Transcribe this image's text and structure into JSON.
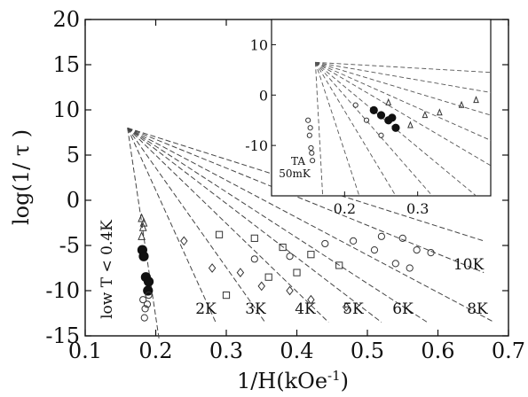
{
  "chart_data": {
    "type": "scatter",
    "xlabel": "1/H(kOe",
    "xlabel_sup": "-1",
    "xlabel_close": ")",
    "ylabel": "log(1/ τ )",
    "xlim": [
      0.1,
      0.7
    ],
    "ylim": [
      -15,
      20
    ],
    "x_ticks": [
      "0.1",
      "0.2",
      "0.3",
      "0.4",
      "0.5",
      "0.6",
      "0.7"
    ],
    "y_ticks": [
      "20",
      "15",
      "10",
      "5",
      "0",
      "-5",
      "-10",
      "-15"
    ],
    "focus_point": [
      0.16,
      8.0
    ],
    "fit_lines": [
      {
        "label": "low T < 0.4K",
        "end": [
          0.205,
          -15.5
        ]
      },
      {
        "label": "2K",
        "end": [
          0.285,
          -13.5
        ]
      },
      {
        "label": "3K",
        "end": [
          0.355,
          -13.5
        ]
      },
      {
        "label": "4K",
        "end": [
          0.445,
          -13.5
        ]
      },
      {
        "label": "5K",
        "end": [
          0.52,
          -13.5
        ]
      },
      {
        "label": "6K",
        "end": [
          0.585,
          -13.5
        ]
      },
      {
        "label": "8K",
        "end": [
          0.68,
          -13.5
        ]
      },
      {
        "label": "10K",
        "end": [
          0.665,
          -8.0
        ]
      },
      {
        "label": "",
        "end": [
          0.665,
          -4.5
        ]
      }
    ],
    "series": [
      {
        "marker": "filled-circle",
        "points": [
          [
            0.181,
            -5.5
          ],
          [
            0.186,
            -8.5
          ],
          [
            0.19,
            -9.0
          ],
          [
            0.189,
            -10.0
          ],
          [
            0.183,
            -6.2
          ]
        ]
      },
      {
        "marker": "open-triangle",
        "points": [
          [
            0.18,
            -2.0
          ],
          [
            0.182,
            -3.0
          ],
          [
            0.18,
            -4.0
          ],
          [
            0.183,
            -2.5
          ]
        ]
      },
      {
        "marker": "open-circle",
        "points": [
          [
            0.182,
            -11.0
          ],
          [
            0.185,
            -12.0
          ],
          [
            0.188,
            -11.5
          ],
          [
            0.184,
            -13.0
          ],
          [
            0.19,
            -10.5
          ]
        ]
      },
      {
        "marker": "open-diamond",
        "points": [
          [
            0.24,
            -4.5
          ],
          [
            0.28,
            -7.5
          ],
          [
            0.32,
            -8.0
          ],
          [
            0.35,
            -9.5
          ],
          [
            0.39,
            -10.0
          ],
          [
            0.42,
            -11.0
          ],
          [
            0.47,
            -11.8
          ]
        ]
      },
      {
        "marker": "open-square",
        "points": [
          [
            0.29,
            -3.8
          ],
          [
            0.34,
            -4.2
          ],
          [
            0.38,
            -5.2
          ],
          [
            0.42,
            -6.0
          ],
          [
            0.46,
            -7.2
          ],
          [
            0.3,
            -10.5
          ],
          [
            0.36,
            -8.5
          ],
          [
            0.4,
            -8.0
          ]
        ]
      },
      {
        "marker": "open-circle",
        "points": [
          [
            0.34,
            -6.5
          ],
          [
            0.39,
            -6.2
          ],
          [
            0.44,
            -4.8
          ],
          [
            0.48,
            -4.5
          ],
          [
            0.52,
            -4.0
          ],
          [
            0.55,
            -4.2
          ],
          [
            0.57,
            -5.5
          ],
          [
            0.59,
            -5.8
          ],
          [
            0.51,
            -5.5
          ],
          [
            0.54,
            -7.0
          ],
          [
            0.56,
            -7.5
          ]
        ]
      }
    ],
    "inset": {
      "xlim": [
        0.1,
        0.4
      ],
      "ylim": [
        -20,
        15
      ],
      "x_ticks": [
        "0.2",
        "0.3"
      ],
      "y_ticks": [
        "10",
        "0",
        "-10"
      ],
      "note_line1": "TA",
      "note_line2": "50mK",
      "focus_point": [
        0.16,
        6.5
      ],
      "fit_line_ends": [
        [
          0.17,
          -20
        ],
        [
          0.22,
          -20
        ],
        [
          0.27,
          -20
        ],
        [
          0.32,
          -20
        ],
        [
          0.38,
          -20
        ],
        [
          0.4,
          -14
        ],
        [
          0.4,
          -9
        ],
        [
          0.4,
          -4
        ],
        [
          0.4,
          0.5
        ],
        [
          0.4,
          4.5
        ]
      ],
      "series": [
        {
          "marker": "filled-circle",
          "points": [
            [
              0.24,
              -3.0
            ],
            [
              0.25,
              -4.0
            ],
            [
              0.26,
              -5.0
            ],
            [
              0.265,
              -4.5
            ],
            [
              0.27,
              -6.5
            ]
          ]
        },
        {
          "marker": "open-triangle",
          "points": [
            [
              0.29,
              -6.0
            ],
            [
              0.31,
              -4.0
            ],
            [
              0.33,
              -3.5
            ],
            [
              0.36,
              -2.0
            ],
            [
              0.38,
              -1.0
            ],
            [
              0.26,
              -1.5
            ]
          ]
        },
        {
          "marker": "open-circle",
          "points": [
            [
              0.15,
              -5.0
            ],
            [
              0.152,
              -8.0
            ],
            [
              0.154,
              -10.5
            ],
            [
              0.156,
              -13.0
            ],
            [
              0.153,
              -6.5
            ],
            [
              0.215,
              -2.0
            ],
            [
              0.23,
              -5.0
            ],
            [
              0.25,
              -8.0
            ],
            [
              0.155,
              -11.5
            ]
          ]
        }
      ]
    }
  }
}
